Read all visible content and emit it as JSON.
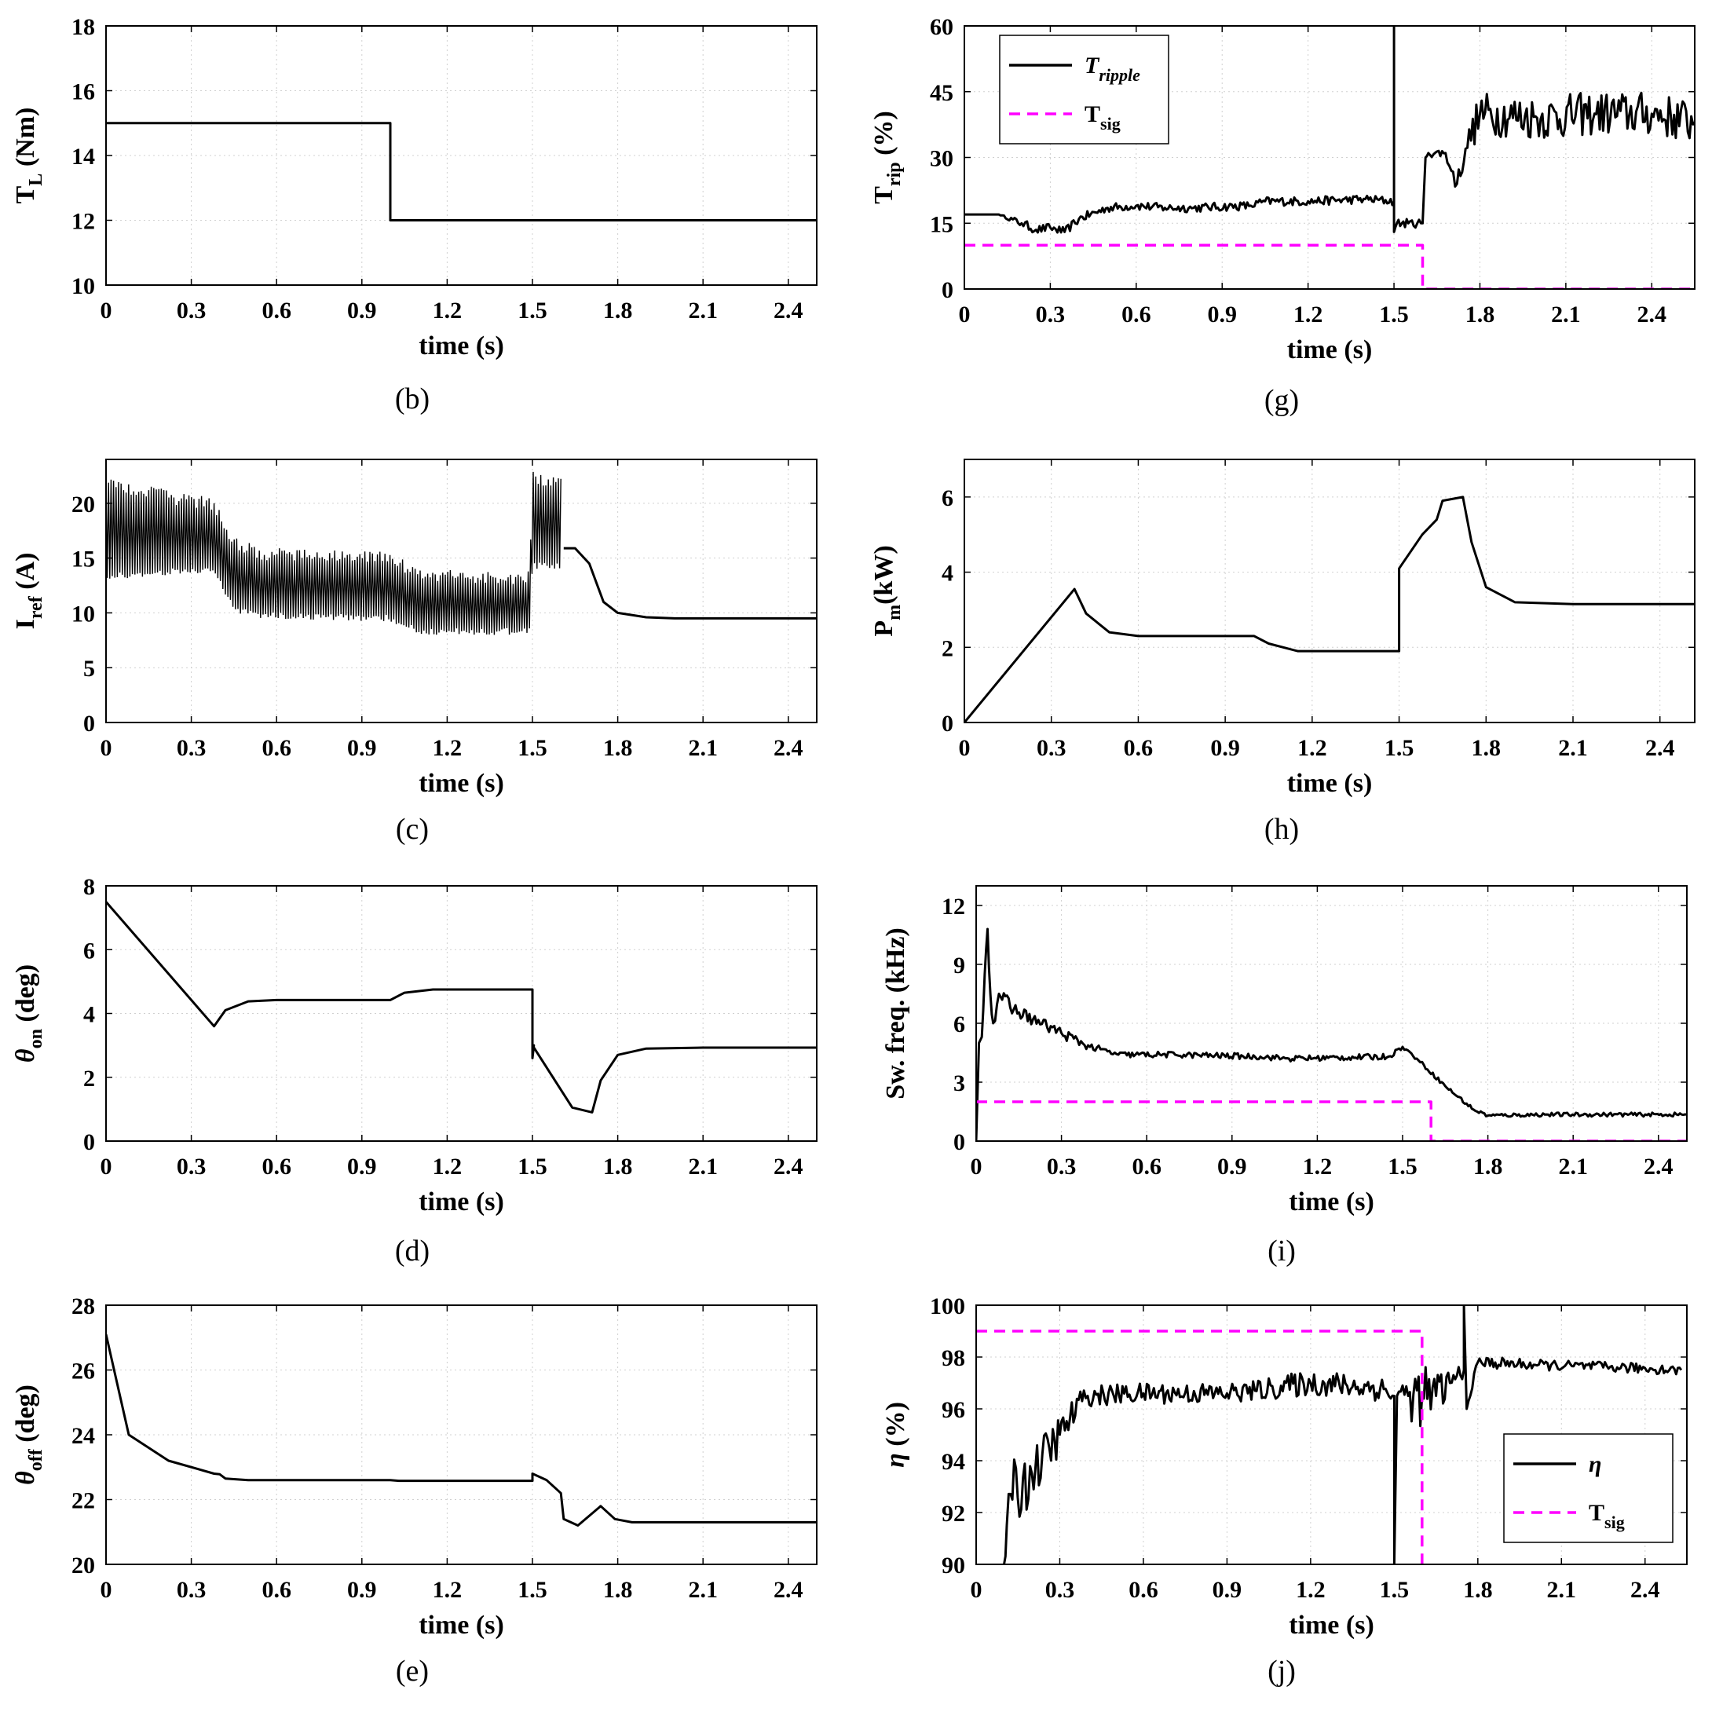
{
  "chart_data": [
    {
      "id": "b",
      "type": "line",
      "caption": "(b)",
      "xlabel": "time (s)",
      "ylabel_main": "T",
      "ylabel_sub": "L",
      "ylabel_tail": " (Nm)",
      "ylabel_italic": false,
      "xlim": [
        0,
        2.5
      ],
      "ylim": [
        10,
        18
      ],
      "xticks": [
        0,
        0.3,
        0.6,
        0.9,
        1.2,
        1.5,
        1.8,
        2.1,
        2.4
      ],
      "xticklabels": [
        "0",
        "0.3",
        "0.6",
        "0.9",
        "1.2",
        "1.5",
        "1.8",
        "2.1",
        "2.4"
      ],
      "yticks": [
        10,
        12,
        14,
        16,
        18
      ],
      "yticklabels": [
        "10",
        "12",
        "14",
        "16",
        "18"
      ],
      "grid": true,
      "series": [
        {
          "name": "T_L",
          "style": "solid",
          "color": "#000000",
          "x": [
            0,
            1.0,
            1.0,
            2.5
          ],
          "y": [
            15,
            15,
            12,
            12
          ]
        }
      ]
    },
    {
      "id": "g",
      "type": "line",
      "caption": "(g)",
      "xlabel": "time (s)",
      "ylabel_main": "T",
      "ylabel_sub": "rip",
      "ylabel_tail": " (%)",
      "ylabel_italic": false,
      "xlim": [
        0,
        2.55
      ],
      "ylim": [
        0,
        60
      ],
      "xticks": [
        0,
        0.3,
        0.6,
        0.9,
        1.2,
        1.5,
        1.8,
        2.1,
        2.4
      ],
      "xticklabels": [
        "0",
        "0.3",
        "0.6",
        "0.9",
        "1.2",
        "1.5",
        "1.8",
        "2.1",
        "2.4"
      ],
      "yticks": [
        0,
        15,
        30,
        45,
        60
      ],
      "yticklabels": [
        "0",
        "15",
        "30",
        "45",
        "60"
      ],
      "grid": true,
      "legend": {
        "position": "top-left",
        "entries": [
          {
            "main": "T",
            "sub": "ripple",
            "italic": true,
            "style": "solid"
          },
          {
            "main": "T",
            "sub": "sig",
            "italic": false,
            "style": "dashed"
          }
        ]
      },
      "series": [
        {
          "name": "T_ripple",
          "style": "solid",
          "color": "#000000",
          "x": [
            0,
            0.12,
            0.2,
            0.25,
            0.3,
            0.35,
            0.4,
            0.5,
            0.6,
            0.7,
            0.8,
            1.0,
            1.05,
            1.2,
            1.4,
            1.5,
            1.5,
            1.5,
            1.51,
            1.55,
            1.6,
            1.61,
            1.62,
            1.68,
            1.7,
            1.72,
            1.75,
            1.8,
            2.0,
            2.2,
            2.4,
            2.55
          ],
          "y": [
            17,
            17,
            15,
            13.5,
            14,
            13,
            16,
            18.5,
            19,
            18.5,
            18.5,
            19,
            20,
            20,
            20.5,
            20,
            60,
            13,
            15,
            15,
            15,
            30,
            31,
            31,
            27,
            24,
            32,
            40,
            39,
            40,
            40,
            38
          ],
          "noise": [
            0,
            0,
            1,
            1,
            1,
            1,
            1,
            1,
            1,
            1,
            1,
            1,
            1,
            1,
            1,
            1,
            0,
            0,
            1,
            1,
            1,
            0,
            1,
            1,
            2,
            2,
            3,
            5,
            5,
            5,
            5,
            5
          ]
        },
        {
          "name": "T_sig",
          "style": "dashed",
          "color": "#ff00ff",
          "x": [
            0,
            1.6,
            1.6,
            2.55
          ],
          "y": [
            10,
            10,
            0,
            0
          ]
        }
      ]
    },
    {
      "id": "c",
      "type": "line",
      "caption": "(c)",
      "xlabel": "time (s)",
      "ylabel_main": "I",
      "ylabel_sub": "ref",
      "ylabel_tail": " (A)",
      "ylabel_italic": false,
      "xlim": [
        0,
        2.5
      ],
      "ylim": [
        0,
        24
      ],
      "xticks": [
        0,
        0.3,
        0.6,
        0.9,
        1.2,
        1.5,
        1.8,
        2.1,
        2.4
      ],
      "xticklabels": [
        "0",
        "0.3",
        "0.6",
        "0.9",
        "1.2",
        "1.5",
        "1.8",
        "2.1",
        "2.4"
      ],
      "yticks": [
        0,
        5,
        10,
        15,
        20
      ],
      "yticklabels": [
        "0",
        "5",
        "10",
        "15",
        "20"
      ],
      "grid": true,
      "series": [
        {
          "name": "I_ref",
          "style": "solid",
          "color": "#000000",
          "x": [
            1.61,
            1.65,
            1.7,
            1.75,
            1.8,
            1.9,
            2.0,
            2.5
          ],
          "y": [
            15.9,
            15.9,
            14.5,
            11,
            10,
            9.6,
            9.5,
            9.5
          ],
          "band": [
            [
              0,
              13,
              22.5
            ],
            [
              0.25,
              13.5,
              21
            ],
            [
              0.38,
              13.5,
              20.5
            ],
            [
              0.45,
              10,
              17
            ],
            [
              0.55,
              9.5,
              16
            ],
            [
              1.0,
              9.2,
              15.8
            ],
            [
              1.1,
              8,
              14
            ],
            [
              1.49,
              8,
              13.8
            ],
            [
              1.5,
              14,
              23
            ],
            [
              1.6,
              14,
              22.5
            ]
          ]
        }
      ]
    },
    {
      "id": "h",
      "type": "line",
      "caption": "(h)",
      "xlabel": "time (s)",
      "ylabel_main": "P",
      "ylabel_sub": "m",
      "ylabel_tail": "(kW)",
      "ylabel_italic": false,
      "xlim": [
        0,
        2.52
      ],
      "ylim": [
        0,
        7
      ],
      "xticks": [
        0,
        0.3,
        0.6,
        0.9,
        1.2,
        1.5,
        1.8,
        2.1,
        2.4
      ],
      "xticklabels": [
        "0",
        "0.3",
        "0.6",
        "0.9",
        "1.2",
        "1.5",
        "1.8",
        "2.1",
        "2.4"
      ],
      "yticks": [
        0,
        2,
        4,
        6
      ],
      "yticklabels": [
        "0",
        "2",
        "4",
        "6"
      ],
      "grid": true,
      "series": [
        {
          "name": "P_m",
          "style": "solid",
          "color": "#000000",
          "x": [
            0,
            0.38,
            0.42,
            0.5,
            0.6,
            1.0,
            1.05,
            1.15,
            1.5,
            1.5,
            1.58,
            1.63,
            1.65,
            1.72,
            1.75,
            1.8,
            1.9,
            2.1,
            2.52
          ],
          "y": [
            0,
            3.55,
            2.9,
            2.4,
            2.3,
            2.3,
            2.1,
            1.9,
            1.9,
            4.1,
            5.0,
            5.4,
            5.9,
            6.0,
            4.8,
            3.6,
            3.2,
            3.15,
            3.15
          ]
        }
      ]
    },
    {
      "id": "d",
      "type": "line",
      "caption": "(d)",
      "xlabel": "time (s)",
      "ylabel_main": "θ",
      "ylabel_sub": "on",
      "ylabel_tail": " (deg)",
      "ylabel_italic": true,
      "xlim": [
        0,
        2.5
      ],
      "ylim": [
        0,
        8
      ],
      "xticks": [
        0,
        0.3,
        0.6,
        0.9,
        1.2,
        1.5,
        1.8,
        2.1,
        2.4
      ],
      "xticklabels": [
        "0",
        "0.3",
        "0.6",
        "0.9",
        "1.2",
        "1.5",
        "1.8",
        "2.1",
        "2.4"
      ],
      "yticks": [
        0,
        2,
        4,
        6,
        8
      ],
      "yticklabels": [
        "0",
        "2",
        "4",
        "6",
        "8"
      ],
      "grid": true,
      "series": [
        {
          "name": "theta_on",
          "style": "solid",
          "color": "#000000",
          "x": [
            0,
            0.38,
            0.42,
            0.5,
            0.6,
            1.0,
            1.05,
            1.15,
            1.5,
            1.5,
            1.505,
            1.5,
            1.64,
            1.71,
            1.74,
            1.8,
            1.9,
            2.1,
            2.5
          ],
          "y": [
            7.5,
            3.6,
            4.1,
            4.38,
            4.42,
            4.42,
            4.65,
            4.75,
            4.75,
            2.6,
            3.0,
            3.0,
            1.05,
            0.9,
            1.9,
            2.7,
            2.9,
            2.93,
            2.93
          ]
        }
      ]
    },
    {
      "id": "i",
      "type": "line",
      "caption": "(i)",
      "xlabel": "time (s)",
      "ylabel_main": "Sw. freq. (kHz)",
      "ylabel_sub": "",
      "ylabel_tail": "",
      "ylabel_italic": false,
      "xlim": [
        0,
        2.5
      ],
      "ylim": [
        0,
        13
      ],
      "xticks": [
        0,
        0.3,
        0.6,
        0.9,
        1.2,
        1.5,
        1.8,
        2.1,
        2.4
      ],
      "xticklabels": [
        "0",
        "0.3",
        "0.6",
        "0.9",
        "1.2",
        "1.5",
        "1.8",
        "2.1",
        "2.4"
      ],
      "yticks": [
        0,
        3,
        6,
        9,
        12
      ],
      "yticklabels": [
        "0",
        "3",
        "6",
        "9",
        "12"
      ],
      "grid": true,
      "series": [
        {
          "name": "sw_freq",
          "style": "solid",
          "color": "#000000",
          "x": [
            0,
            0.01,
            0.02,
            0.03,
            0.04,
            0.05,
            0.06,
            0.08,
            0.12,
            0.2,
            0.3,
            0.4,
            0.5,
            0.7,
            1.0,
            1.1,
            1.45,
            1.5,
            1.55,
            1.65,
            1.75,
            1.8,
            2.0,
            2.5
          ],
          "y": [
            0,
            5,
            5.3,
            8.5,
            10.8,
            7.5,
            6,
            7.5,
            6.8,
            6.2,
            5.5,
            4.8,
            4.4,
            4.4,
            4.3,
            4.2,
            4.3,
            4.8,
            4.2,
            2.8,
            1.6,
            1.3,
            1.35,
            1.35
          ],
          "noise": [
            0,
            0,
            0,
            0.5,
            0,
            0.6,
            0.6,
            0.5,
            0.4,
            0.3,
            0.3,
            0.2,
            0.15,
            0.15,
            0.15,
            0.15,
            0.15,
            0.1,
            0.1,
            0.1,
            0.1,
            0.1,
            0.1,
            0.1
          ]
        },
        {
          "name": "T_sig",
          "style": "dashed",
          "color": "#ff00ff",
          "x": [
            0,
            1.6,
            1.6,
            2.5
          ],
          "y": [
            2,
            2,
            0,
            0
          ]
        }
      ]
    },
    {
      "id": "e",
      "type": "line",
      "caption": "(e)",
      "xlabel": "time (s)",
      "ylabel_main": "θ",
      "ylabel_sub": "off",
      "ylabel_tail": " (deg)",
      "ylabel_italic": true,
      "xlim": [
        0,
        2.5
      ],
      "ylim": [
        20,
        28
      ],
      "xticks": [
        0,
        0.3,
        0.6,
        0.9,
        1.2,
        1.5,
        1.8,
        2.1,
        2.4
      ],
      "xticklabels": [
        "0",
        "0.3",
        "0.6",
        "0.9",
        "1.2",
        "1.5",
        "1.8",
        "2.1",
        "2.4"
      ],
      "yticks": [
        20,
        22,
        24,
        26,
        28
      ],
      "yticklabels": [
        "20",
        "22",
        "24",
        "26",
        "28"
      ],
      "grid": true,
      "series": [
        {
          "name": "theta_off",
          "style": "solid",
          "color": "#000000",
          "x": [
            0,
            0.08,
            0.22,
            0.38,
            0.4,
            0.42,
            0.5,
            1.0,
            1.03,
            1.5,
            1.5,
            1.55,
            1.6,
            1.61,
            1.66,
            1.74,
            1.79,
            1.85,
            2.0,
            2.5
          ],
          "y": [
            27.1,
            24.0,
            23.2,
            22.8,
            22.78,
            22.65,
            22.6,
            22.6,
            22.58,
            22.58,
            22.8,
            22.6,
            22.2,
            21.4,
            21.2,
            21.8,
            21.4,
            21.3,
            21.3,
            21.3
          ]
        }
      ]
    },
    {
      "id": "j",
      "type": "line",
      "caption": "(j)",
      "xlabel": "time (s)",
      "ylabel_main": "η",
      "ylabel_sub": "",
      "ylabel_tail": " (%)",
      "ylabel_italic": true,
      "xlim": [
        0,
        2.55
      ],
      "ylim": [
        90,
        100
      ],
      "xticks": [
        0,
        0.3,
        0.6,
        0.9,
        1.2,
        1.5,
        1.8,
        2.1,
        2.4
      ],
      "xticklabels": [
        "0",
        "0.3",
        "0.6",
        "0.9",
        "1.2",
        "1.5",
        "1.8",
        "2.1",
        "2.4"
      ],
      "yticks": [
        90,
        92,
        94,
        96,
        98,
        100
      ],
      "yticklabels": [
        "90",
        "92",
        "94",
        "96",
        "98",
        "100"
      ],
      "grid": true,
      "legend": {
        "position": "bottom-right",
        "entries": [
          {
            "main": "η",
            "sub": "",
            "italic": true,
            "style": "solid"
          },
          {
            "main": "T",
            "sub": "sig",
            "italic": false,
            "style": "dashed"
          }
        ]
      },
      "series": [
        {
          "name": "eta",
          "style": "solid",
          "color": "#000000",
          "x": [
            0.1,
            0.11,
            0.13,
            0.2,
            0.3,
            0.38,
            0.4,
            0.6,
            0.9,
            1.0,
            1.2,
            1.45,
            1.5,
            1.5,
            1.51,
            1.55,
            1.6,
            1.65,
            1.7,
            1.75,
            1.75,
            1.76,
            1.8,
            2.0,
            2.3,
            2.53
          ],
          "y": [
            90,
            91.5,
            92.5,
            93.5,
            95,
            96.3,
            96.5,
            96.6,
            96.6,
            96.7,
            97.0,
            96.8,
            96.5,
            90,
            96.5,
            96.5,
            96.5,
            96.5,
            97.0,
            97.5,
            100,
            96,
            97.8,
            97.7,
            97.6,
            97.5
          ],
          "noise": [
            0,
            1.5,
            1.5,
            1.0,
            0.8,
            0.5,
            0.4,
            0.4,
            0.4,
            0.4,
            0.5,
            0.5,
            0.4,
            0,
            0.4,
            1.0,
            1.2,
            1.0,
            0.6,
            0.3,
            0,
            0,
            0.25,
            0.2,
            0.2,
            0.2
          ]
        },
        {
          "name": "T_sig",
          "style": "dashed",
          "color": "#ff00ff",
          "x": [
            0,
            1.6,
            1.6
          ],
          "y": [
            99,
            99,
            90
          ]
        }
      ]
    }
  ]
}
